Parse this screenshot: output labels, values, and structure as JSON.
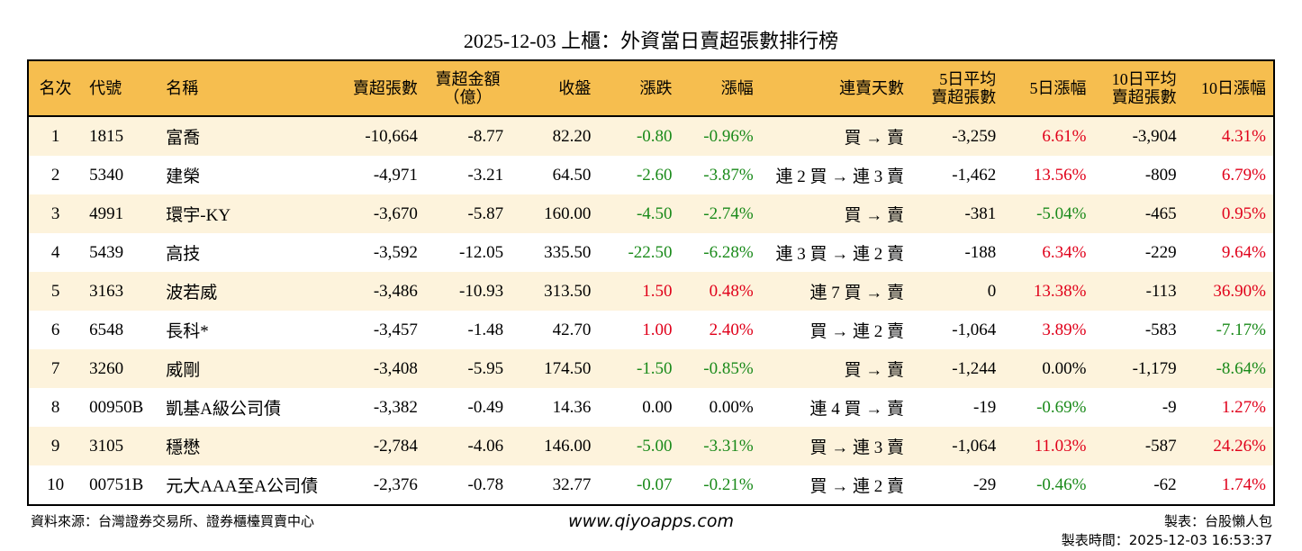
{
  "title": "2025-12-03 上櫃：外資當日賣超張數排行榜",
  "headers": [
    "名次",
    "代號",
    "名稱",
    "賣超張數",
    "賣超金額\n（億）",
    "收盤",
    "漲跌",
    "漲幅",
    "連賣天數",
    "5日平均\n賣超張數",
    "5日漲幅",
    "10日平均\n賣超張數",
    "10日漲幅"
  ],
  "rows": [
    [
      "1",
      "1815",
      "富喬",
      "-10,664",
      "-8.77",
      "82.20",
      "-0.80",
      "-0.96%",
      "買 → 賣",
      "-3,259",
      "6.61%",
      "-3,904",
      "4.31%"
    ],
    [
      "2",
      "5340",
      "建榮",
      "-4,971",
      "-3.21",
      "64.50",
      "-2.60",
      "-3.87%",
      "連 2 買 → 連 3 賣",
      "-1,462",
      "13.56%",
      "-809",
      "6.79%"
    ],
    [
      "3",
      "4991",
      "環宇-KY",
      "-3,670",
      "-5.87",
      "160.00",
      "-4.50",
      "-2.74%",
      "買 → 賣",
      "-381",
      "-5.04%",
      "-465",
      "0.95%"
    ],
    [
      "4",
      "5439",
      "高技",
      "-3,592",
      "-12.05",
      "335.50",
      "-22.50",
      "-6.28%",
      "連 3 買 → 連 2 賣",
      "-188",
      "6.34%",
      "-229",
      "9.64%"
    ],
    [
      "5",
      "3163",
      "波若威",
      "-3,486",
      "-10.93",
      "313.50",
      "1.50",
      "0.48%",
      "連 7 買 → 賣",
      "0",
      "13.38%",
      "-113",
      "36.90%"
    ],
    [
      "6",
      "6548",
      "長科*",
      "-3,457",
      "-1.48",
      "42.70",
      "1.00",
      "2.40%",
      "買 → 連 2 賣",
      "-1,064",
      "3.89%",
      "-583",
      "-7.17%"
    ],
    [
      "7",
      "3260",
      "威剛",
      "-3,408",
      "-5.95",
      "174.50",
      "-1.50",
      "-0.85%",
      "買 → 賣",
      "-1,244",
      "0.00%",
      "-1,179",
      "-8.64%"
    ],
    [
      "8",
      "00950B",
      "凱基A級公司債",
      "-3,382",
      "-0.49",
      "14.36",
      "0.00",
      "0.00%",
      "連 4 買 → 賣",
      "-19",
      "-0.69%",
      "-9",
      "1.27%"
    ],
    [
      "9",
      "3105",
      "穩懋",
      "-2,784",
      "-4.06",
      "146.00",
      "-5.00",
      "-3.31%",
      "買 → 連 3 賣",
      "-1,064",
      "11.03%",
      "-587",
      "24.26%"
    ],
    [
      "10",
      "00751B",
      "元大AAA至A公司債",
      "-2,376",
      "-0.78",
      "32.77",
      "-0.07",
      "-0.21%",
      "買 → 連 2 賣",
      "-29",
      "-0.46%",
      "-62",
      "1.74%"
    ]
  ],
  "colors": {
    "header_bg": "#F6BE4F",
    "row_alt_bg": "#FDF3DC",
    "up": "#e0001a",
    "down": "#1a8a1a"
  },
  "footer": {
    "source": "資料來源：台灣證券交易所、證券櫃檯買賣中心",
    "website": "www.qiyoapps.com",
    "author": "製表：台股懶人包",
    "time": "製表時間：2025-12-03 16:53:37"
  }
}
